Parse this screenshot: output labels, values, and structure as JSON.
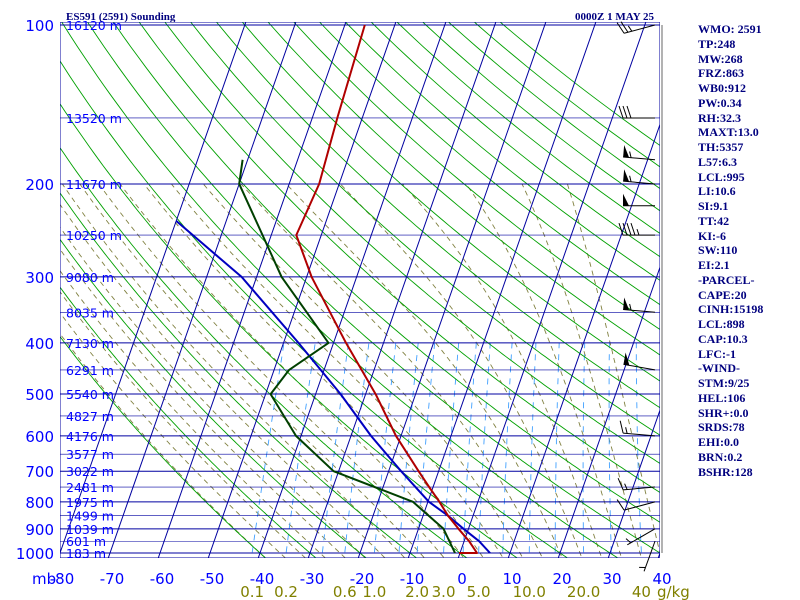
{
  "title_left": "ES591 (2591) Sounding",
  "title_right": "0000Z  1 MAY 25",
  "pressure_axis_unit": "mb",
  "mixing_ratio_unit": "g/kg",
  "colors": {
    "isobar": "#0000a0",
    "isotherm": "#0000a0",
    "dry_adiabat": "#00a000",
    "moist_adiabat": "#808040",
    "mixing_ratio": "#40a0ff",
    "temperature": "#b00000",
    "dewpoint": "#004000",
    "parcel": "#0000c0",
    "axis_text": "#0000ff",
    "mixing_text": "#808000",
    "index_text": "#00007f"
  },
  "indices": [
    "WMO: 2591",
    "TP:248",
    "MW:268",
    "FRZ:863",
    "WB0:912",
    "PW:0.34",
    "RH:32.3",
    "MAXT:13.0",
    "TH:5357",
    "L57:6.3",
    "LCL:995",
    "LI:10.6",
    "SI:9.1",
    "TT:42",
    "KI:-6",
    "SW:110",
    "EI:2.1",
    "-PARCEL-",
    "CAPE:20",
    "CINH:15198",
    "LCL:898",
    "CAP:10.3",
    "LFC:-1",
    "-WIND-",
    "STM:9/25",
    "HEL:106",
    "SHR+:0.0",
    "SRDS:78",
    "EHI:0.0",
    "BRN:0.2",
    "BSHR:128"
  ],
  "chart_data": {
    "type": "skew-t",
    "title": "ES591 (2591) Sounding",
    "pressure_levels": [
      100,
      200,
      300,
      400,
      500,
      600,
      700,
      800,
      900,
      1000
    ],
    "isotherms": [
      -80,
      -70,
      -60,
      -50,
      -40,
      -30,
      -20,
      -10,
      0,
      10,
      20,
      30,
      40
    ],
    "x_tick_labels": [
      "-80",
      "-70",
      "-60",
      "-50",
      "-40",
      "-30",
      "-20",
      "-10",
      "0",
      "10",
      "20",
      "30",
      "40"
    ],
    "mixing_ratio_labels": [
      {
        "value": 0.1,
        "label": "0.1"
      },
      {
        "value": 0.2,
        "label": "0.2"
      },
      {
        "value": 0.6,
        "label": "0.6"
      },
      {
        "value": 1.0,
        "label": "1.0"
      },
      {
        "value": 2.0,
        "label": "2.0"
      },
      {
        "value": 3.0,
        "label": "3.0"
      },
      {
        "value": 5.0,
        "label": "5.0"
      },
      {
        "value": 10.0,
        "label": "10.0"
      },
      {
        "value": 20.0,
        "label": "20.0"
      },
      {
        "value": 40.0,
        "label": "40"
      }
    ],
    "height_labels": [
      {
        "p": 100,
        "label": "16120 m"
      },
      {
        "p": 150,
        "label": "13520 m"
      },
      {
        "p": 200,
        "label": "11670 m"
      },
      {
        "p": 250,
        "label": "10250 m"
      },
      {
        "p": 300,
        "label": "9080 m"
      },
      {
        "p": 350,
        "label": "8035 m"
      },
      {
        "p": 400,
        "label": "7130 m"
      },
      {
        "p": 450,
        "label": "6291 m"
      },
      {
        "p": 500,
        "label": "5540 m"
      },
      {
        "p": 550,
        "label": "4827 m"
      },
      {
        "p": 600,
        "label": "4176 m"
      },
      {
        "p": 650,
        "label": "3577 m"
      },
      {
        "p": 700,
        "label": "3022 m"
      },
      {
        "p": 750,
        "label": "2481 m"
      },
      {
        "p": 800,
        "label": "1975 m"
      },
      {
        "p": 850,
        "label": "1499 m"
      },
      {
        "p": 900,
        "label": "1039 m"
      },
      {
        "p": 950,
        "label": "601 m"
      },
      {
        "p": 1000,
        "label": "183 m"
      }
    ],
    "series": [
      {
        "name": "Temperature",
        "points": [
          {
            "p": 1000,
            "t": -0.2
          },
          {
            "p": 1000,
            "t": 3.4
          },
          {
            "p": 950,
            "t": 1.0
          },
          {
            "p": 900,
            "t": -2.0
          },
          {
            "p": 850,
            "t": -5.0
          },
          {
            "p": 800,
            "t": -7.7
          },
          {
            "p": 750,
            "t": -10.8
          },
          {
            "p": 700,
            "t": -14.0
          },
          {
            "p": 600,
            "t": -21.0
          },
          {
            "p": 500,
            "t": -28.0
          },
          {
            "p": 400,
            "t": -37.5
          },
          {
            "p": 300,
            "t": -49.0
          },
          {
            "p": 250,
            "t": -55.0
          },
          {
            "p": 200,
            "t": -54.0
          },
          {
            "p": 150,
            "t": -55.0
          },
          {
            "p": 100,
            "t": -56.0
          }
        ]
      },
      {
        "name": "Dewpoint",
        "points": [
          {
            "p": 1000,
            "t": -1.0
          },
          {
            "p": 900,
            "t": -5.0
          },
          {
            "p": 800,
            "t": -13.0
          },
          {
            "p": 700,
            "t": -31.0
          },
          {
            "p": 600,
            "t": -41.0
          },
          {
            "p": 500,
            "t": -49.0
          },
          {
            "p": 450,
            "t": -47.0
          },
          {
            "p": 400,
            "t": -41.0
          },
          {
            "p": 300,
            "t": -55.0
          },
          {
            "p": 200,
            "t": -70.0
          },
          {
            "p": 180,
            "t": -71.0
          }
        ]
      },
      {
        "name": "Parcel",
        "points": [
          {
            "p": 1000,
            "t": 6.0
          },
          {
            "p": 950,
            "t": 3.0
          },
          {
            "p": 900,
            "t": -1.0
          },
          {
            "p": 850,
            "t": -5.0
          },
          {
            "p": 800,
            "t": -9.8
          },
          {
            "p": 700,
            "t": -17.5
          },
          {
            "p": 600,
            "t": -26.0
          },
          {
            "p": 500,
            "t": -35.0
          },
          {
            "p": 400,
            "t": -47.0
          },
          {
            "p": 300,
            "t": -63.0
          },
          {
            "p": 235,
            "t": -80.0
          }
        ]
      }
    ],
    "winds": [
      {
        "p": 100,
        "dir": 255,
        "spd": 25
      },
      {
        "p": 150,
        "dir": 270,
        "spd": 30
      },
      {
        "p": 180,
        "dir": 275,
        "spd": 55
      },
      {
        "p": 200,
        "dir": 275,
        "spd": 55
      },
      {
        "p": 220,
        "dir": 270,
        "spd": 50
      },
      {
        "p": 250,
        "dir": 270,
        "spd": 45
      },
      {
        "p": 350,
        "dir": 275,
        "spd": 55
      },
      {
        "p": 450,
        "dir": 280,
        "spd": 50
      },
      {
        "p": 600,
        "dir": 275,
        "spd": 15
      },
      {
        "p": 750,
        "dir": 265,
        "spd": 15
      },
      {
        "p": 800,
        "dir": 255,
        "spd": 10
      },
      {
        "p": 900,
        "dir": 240,
        "spd": 5
      },
      {
        "p": 950,
        "dir": 200,
        "spd": 5
      }
    ]
  }
}
